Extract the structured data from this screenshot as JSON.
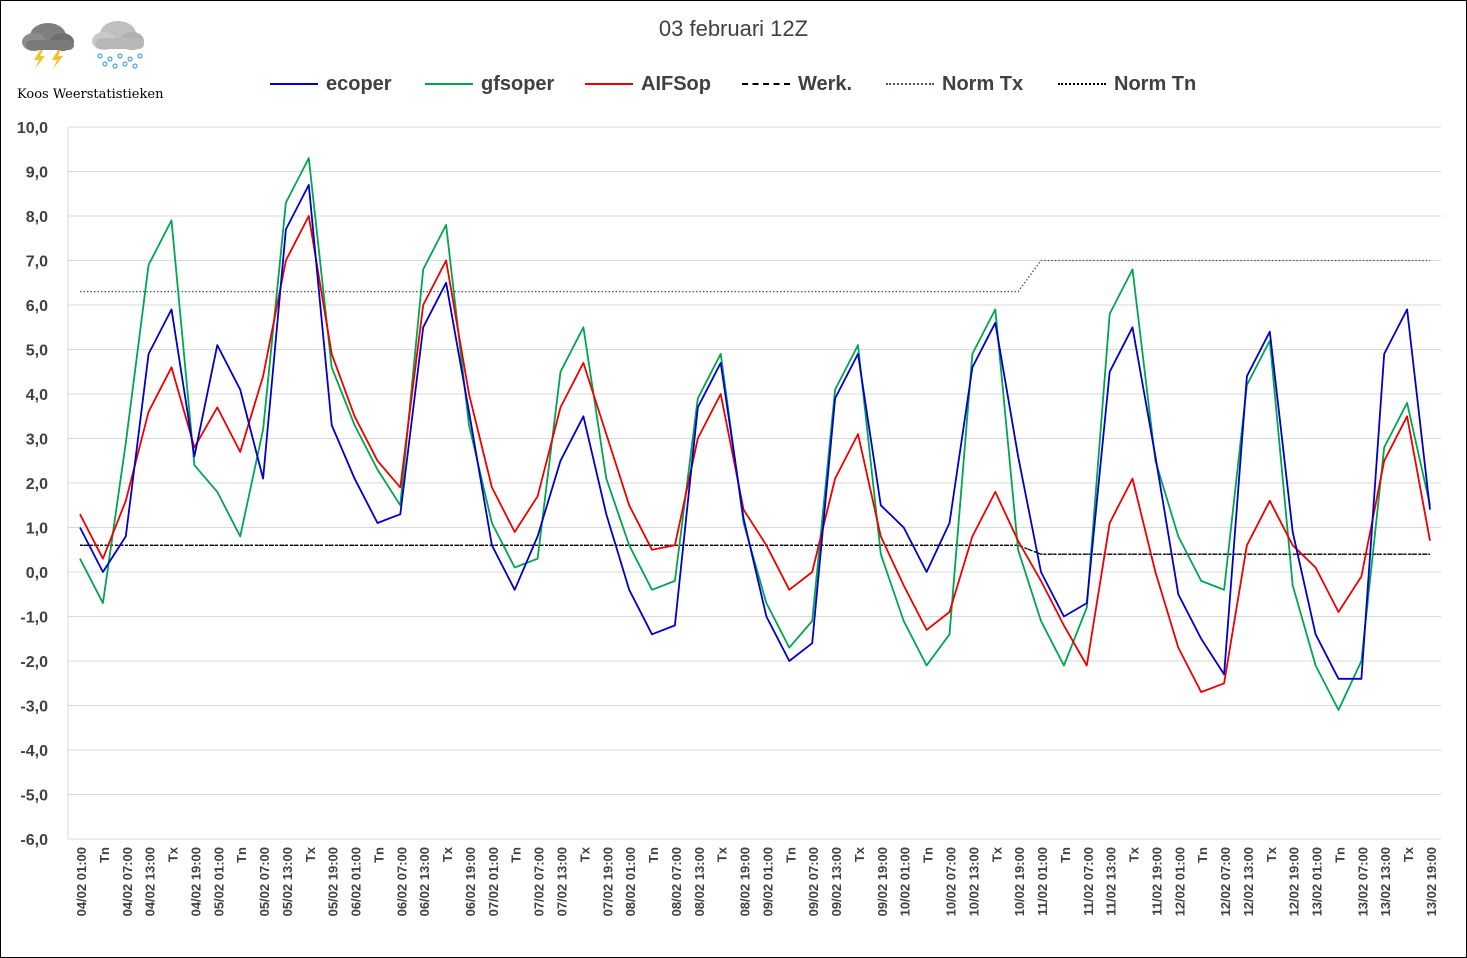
{
  "title": "03 februari 12Z",
  "brand": "Koos Weerstatistieken",
  "logo_icons": [
    "thunderstorm-cloud-icon",
    "snow-cloud-icon"
  ],
  "chart_data": {
    "type": "line",
    "ylim": [
      -6,
      10
    ],
    "yticks": [
      "10,0",
      "9,0",
      "8,0",
      "7,0",
      "6,0",
      "5,0",
      "4,0",
      "3,0",
      "2,0",
      "1,0",
      "0,0",
      "-1,0",
      "-2,0",
      "-3,0",
      "-4,0",
      "-5,0",
      "-6,0"
    ],
    "grid": true,
    "legend_position": "top",
    "categories": [
      "04/02 01:00",
      "Tn",
      "04/02 07:00",
      "04/02 13:00",
      "Tx",
      "04/02 19:00",
      "05/02 01:00",
      "Tn",
      "05/02 07:00",
      "05/02 13:00",
      "Tx",
      "05/02 19:00",
      "06/02 01:00",
      "Tn",
      "06/02 07:00",
      "06/02 13:00",
      "Tx",
      "06/02 19:00",
      "07/02 01:00",
      "Tn",
      "07/02 07:00",
      "07/02 13:00",
      "Tx",
      "07/02 19:00",
      "08/02 01:00",
      "Tn",
      "08/02 07:00",
      "08/02 13:00",
      "Tx",
      "08/02 19:00",
      "09/02 01:00",
      "Tn",
      "09/02 07:00",
      "09/02 13:00",
      "Tx",
      "09/02 19:00",
      "10/02 01:00",
      "Tn",
      "10/02 07:00",
      "10/02 13:00",
      "Tx",
      "10/02 19:00",
      "11/02 01:00",
      "Tn",
      "11/02 07:00",
      "11/02 13:00",
      "Tx",
      "11/02 19:00",
      "12/02 01:00",
      "Tn",
      "12/02 07:00",
      "12/02 13:00",
      "Tx",
      "12/02 19:00",
      "13/02 01:00",
      "Tn",
      "13/02 07:00",
      "13/02 13:00",
      "Tx",
      "13/02 19:00"
    ],
    "series": [
      {
        "name": "ecoper",
        "color": "#0000cc",
        "style": "solid",
        "values": [
          1.0,
          0.0,
          0.8,
          4.9,
          5.9,
          2.6,
          5.1,
          4.1,
          2.1,
          7.7,
          8.7,
          3.3,
          2.1,
          1.1,
          1.3,
          5.5,
          6.5,
          3.6,
          0.6,
          -0.4,
          0.8,
          2.5,
          3.5,
          1.3,
          -0.4,
          -1.4,
          -1.2,
          3.7,
          4.7,
          1.2,
          -1.0,
          -2.0,
          -1.6,
          3.9,
          4.9,
          1.5,
          1.0,
          0.0,
          1.1,
          4.6,
          5.6,
          2.6,
          0.0,
          -1.0,
          -0.7,
          4.5,
          5.5,
          2.6,
          -0.5,
          -1.5,
          -2.3,
          4.4,
          5.4,
          0.9,
          -1.4,
          -2.4,
          -2.4,
          4.9,
          5.9,
          1.4
        ]
      },
      {
        "name": "gfsoper",
        "color": "#00a550",
        "style": "solid",
        "values": [
          0.3,
          -0.7,
          2.9,
          6.9,
          7.9,
          2.4,
          1.8,
          0.8,
          3.2,
          8.3,
          9.3,
          4.6,
          3.3,
          2.3,
          1.5,
          6.8,
          7.8,
          3.3,
          1.1,
          0.1,
          0.3,
          4.5,
          5.5,
          2.1,
          0.6,
          -0.4,
          -0.2,
          3.9,
          4.9,
          1.1,
          -0.7,
          -1.7,
          -1.1,
          4.1,
          5.1,
          0.4,
          -1.1,
          -2.1,
          -1.4,
          4.9,
          5.9,
          0.5,
          -1.1,
          -2.1,
          -0.8,
          5.8,
          6.8,
          2.5,
          0.8,
          -0.2,
          -0.4,
          4.2,
          5.2,
          -0.3,
          -2.1,
          -3.1,
          -2.0,
          2.8,
          3.8,
          1.5
        ]
      },
      {
        "name": "AIFSop",
        "color": "#ee0000",
        "style": "solid",
        "values": [
          1.3,
          0.3,
          1.6,
          3.6,
          4.6,
          2.8,
          3.7,
          2.7,
          4.4,
          7.0,
          8.0,
          4.9,
          3.5,
          2.5,
          1.9,
          6.0,
          7.0,
          4.0,
          1.9,
          0.9,
          1.7,
          3.7,
          4.7,
          3.1,
          1.5,
          0.5,
          0.6,
          3.0,
          4.0,
          1.4,
          0.6,
          -0.4,
          0.0,
          2.1,
          3.1,
          0.8,
          -0.3,
          -1.3,
          -0.9,
          0.8,
          1.8,
          0.7,
          -0.2,
          -1.2,
          -2.1,
          1.1,
          2.1,
          0.0,
          -1.7,
          -2.7,
          -2.5,
          0.6,
          1.6,
          0.6,
          0.1,
          -0.9,
          -0.1,
          2.5,
          3.5,
          0.7
        ]
      },
      {
        "name": "Werk.",
        "color": "#000000",
        "style": "dashed",
        "values": [
          0.6,
          0.6,
          0.6,
          0.6,
          0.6,
          0.6,
          0.6,
          0.6,
          0.6,
          0.6,
          0.6,
          0.6,
          0.6,
          0.6,
          0.6,
          0.6,
          0.6,
          0.6,
          0.6,
          0.6,
          0.6,
          0.6,
          0.6,
          0.6,
          0.6,
          0.6,
          0.6,
          0.6,
          0.6,
          0.6,
          0.6,
          0.6,
          0.6,
          0.6,
          0.6,
          0.6,
          0.6,
          0.6,
          0.6,
          0.6,
          0.6,
          0.6,
          0.4,
          0.4,
          0.4,
          0.4,
          0.4,
          0.4,
          0.4,
          0.4,
          0.4,
          0.4,
          0.4,
          0.4,
          0.4,
          0.4,
          0.4,
          0.4,
          0.4,
          0.4
        ]
      },
      {
        "name": "Norm Tx",
        "color": "#44546a",
        "style": "dotted",
        "values": [
          6.3,
          6.3,
          6.3,
          6.3,
          6.3,
          6.3,
          6.3,
          6.3,
          6.3,
          6.3,
          6.3,
          6.3,
          6.3,
          6.3,
          6.3,
          6.3,
          6.3,
          6.3,
          6.3,
          6.3,
          6.3,
          6.3,
          6.3,
          6.3,
          6.3,
          6.3,
          6.3,
          6.3,
          6.3,
          6.3,
          6.3,
          6.3,
          6.3,
          6.3,
          6.3,
          6.3,
          6.3,
          6.3,
          6.3,
          6.3,
          6.3,
          6.3,
          7.0,
          7.0,
          7.0,
          7.0,
          7.0,
          7.0,
          7.0,
          7.0,
          7.0,
          7.0,
          7.0,
          7.0,
          7.0,
          7.0,
          7.0,
          7.0,
          7.0,
          7.0
        ]
      },
      {
        "name": "Norm Tn",
        "color": "#000000",
        "style": "dotted",
        "values": [
          0.6,
          0.6,
          0.6,
          0.6,
          0.6,
          0.6,
          0.6,
          0.6,
          0.6,
          0.6,
          0.6,
          0.6,
          0.6,
          0.6,
          0.6,
          0.6,
          0.6,
          0.6,
          0.6,
          0.6,
          0.6,
          0.6,
          0.6,
          0.6,
          0.6,
          0.6,
          0.6,
          0.6,
          0.6,
          0.6,
          0.6,
          0.6,
          0.6,
          0.6,
          0.6,
          0.6,
          0.6,
          0.6,
          0.6,
          0.6,
          0.6,
          0.6,
          0.4,
          0.4,
          0.4,
          0.4,
          0.4,
          0.4,
          0.4,
          0.4,
          0.4,
          0.4,
          0.4,
          0.4,
          0.4,
          0.4,
          0.4,
          0.4,
          0.4,
          0.4
        ]
      }
    ]
  }
}
